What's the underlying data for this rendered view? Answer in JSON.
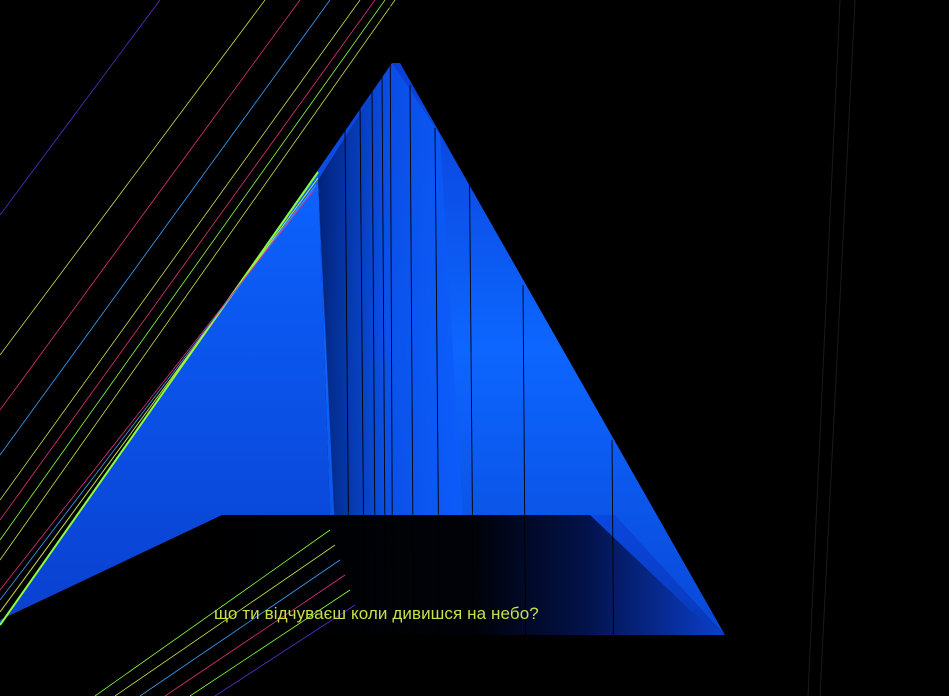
{
  "caption": {
    "text": "що ти відчуваєш коли дивишся на небо?"
  },
  "colors": {
    "background": "#000000",
    "surface_light": "#0d6bff",
    "surface_dark": "#0033b3",
    "caption": "#c8e04a"
  }
}
